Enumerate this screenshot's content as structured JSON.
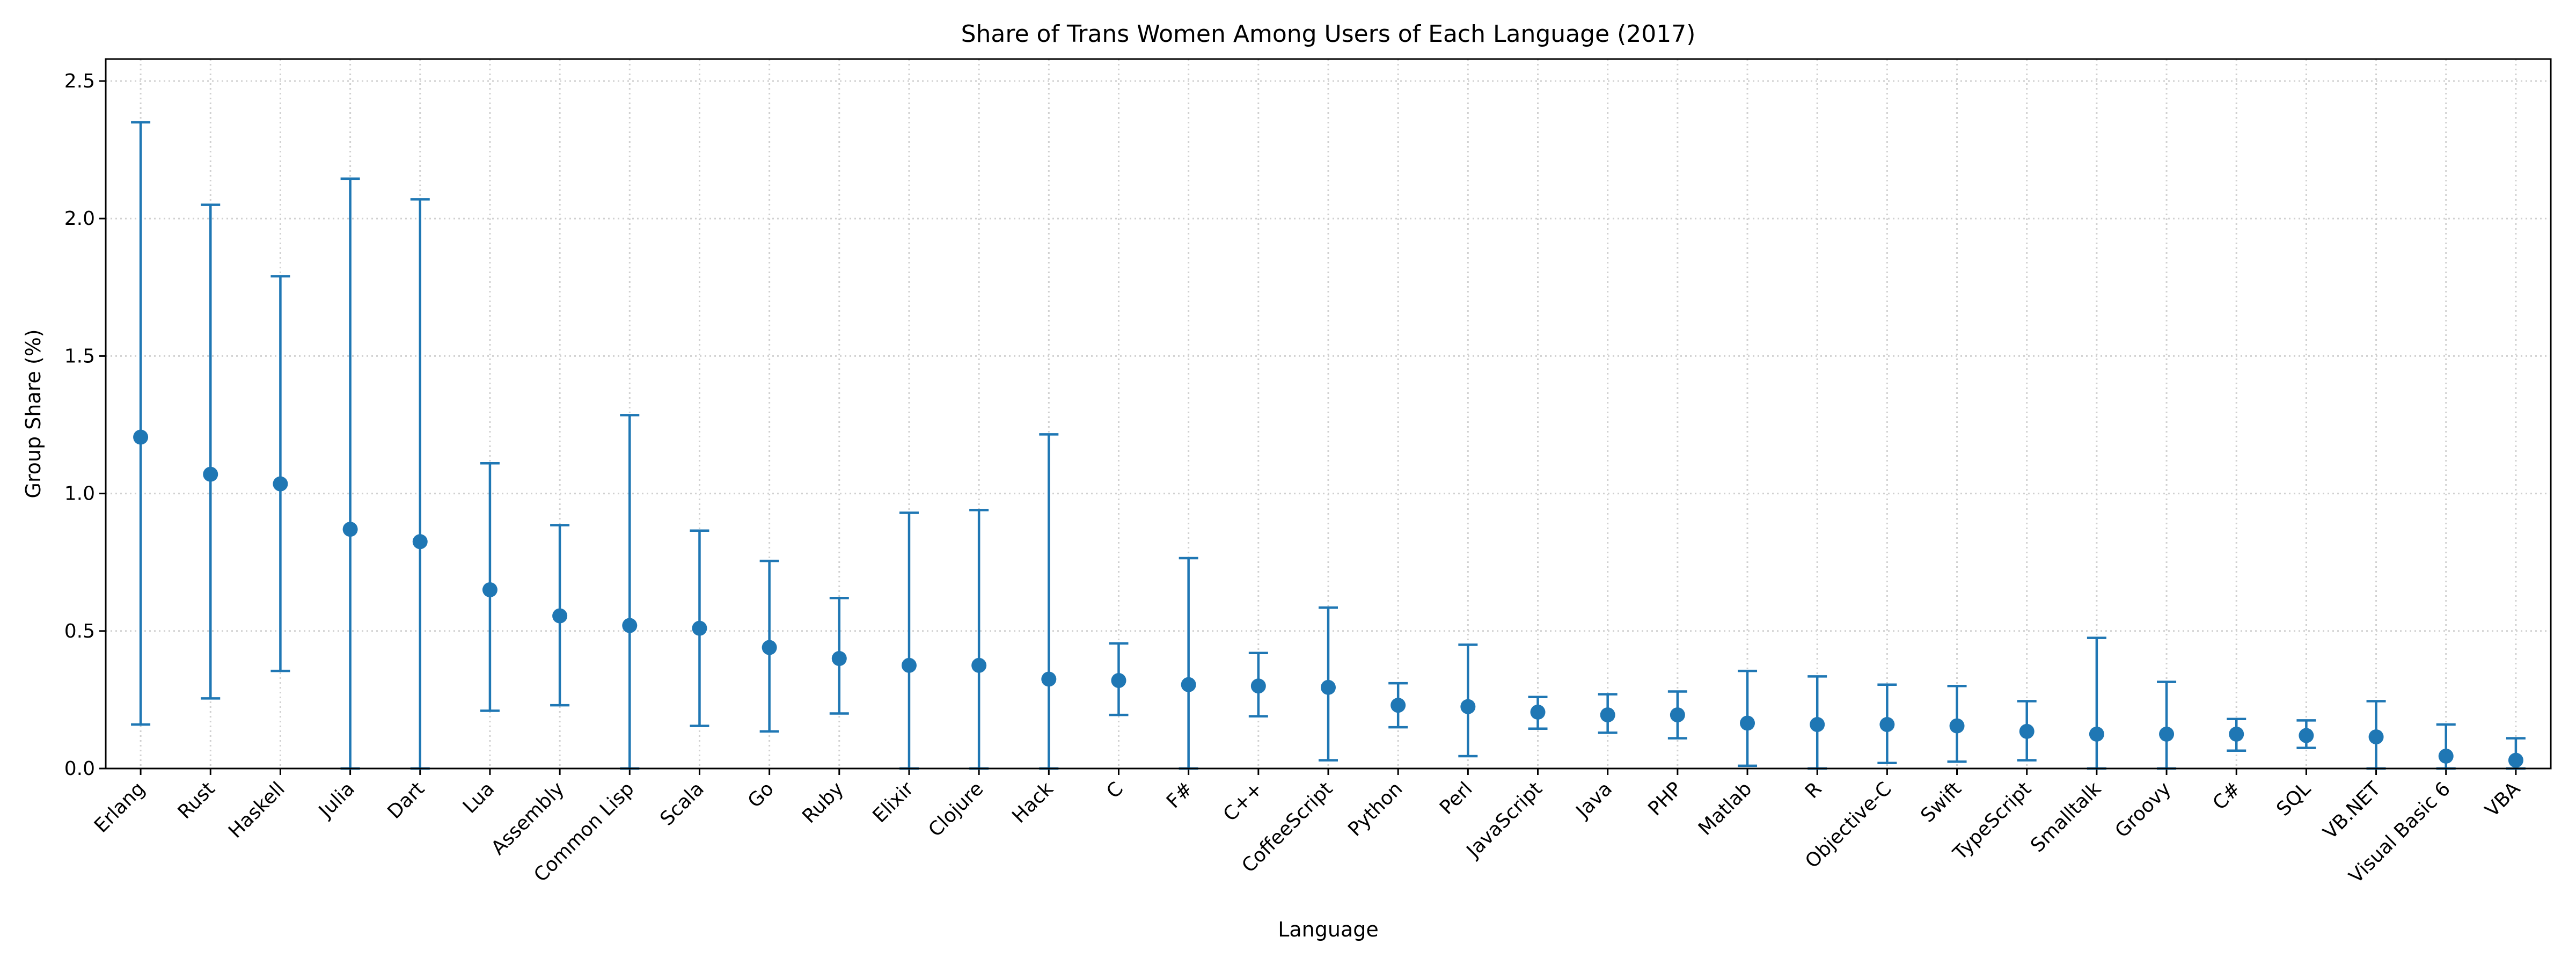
{
  "chart_data": {
    "type": "errorbar",
    "title": "Share of Trans Women Among Users of Each Language (2017)",
    "xlabel": "Language",
    "ylabel": "Group Share (%)",
    "ylim": [
      0,
      2.58
    ],
    "yticks": [
      "0.0",
      "0.5",
      "1.0",
      "1.5",
      "2.0",
      "2.5"
    ],
    "grid": true,
    "color": "#1f77b4",
    "categories": [
      "Erlang",
      "Rust",
      "Haskell",
      "Julia",
      "Dart",
      "Lua",
      "Assembly",
      "Common Lisp",
      "Scala",
      "Go",
      "Ruby",
      "Elixir",
      "Clojure",
      "Hack",
      "C",
      "F#",
      "C++",
      "CoffeeScript",
      "Python",
      "Perl",
      "JavaScript",
      "Java",
      "PHP",
      "Matlab",
      "R",
      "Objective-C",
      "Swift",
      "TypeScript",
      "Smalltalk",
      "Groovy",
      "C#",
      "SQL",
      "VB.NET",
      "Visual Basic 6",
      "VBA"
    ],
    "values": [
      1.205,
      1.07,
      1.035,
      0.87,
      0.825,
      0.65,
      0.555,
      0.52,
      0.51,
      0.44,
      0.4,
      0.375,
      0.375,
      0.325,
      0.32,
      0.305,
      0.3,
      0.295,
      0.23,
      0.225,
      0.205,
      0.195,
      0.195,
      0.165,
      0.16,
      0.16,
      0.155,
      0.135,
      0.125,
      0.125,
      0.125,
      0.12,
      0.115,
      0.045,
      0.03
    ],
    "lower": [
      0.16,
      0.255,
      0.355,
      0.0,
      0.0,
      0.21,
      0.23,
      0.0,
      0.155,
      0.135,
      0.2,
      0.0,
      0.0,
      0.0,
      0.195,
      0.0,
      0.19,
      0.03,
      0.15,
      0.045,
      0.145,
      0.13,
      0.11,
      0.01,
      0.0,
      0.02,
      0.025,
      0.03,
      0.0,
      0.0,
      0.065,
      0.075,
      0.0,
      0.0,
      0.0
    ],
    "upper": [
      2.35,
      2.05,
      1.79,
      2.145,
      2.07,
      1.11,
      0.885,
      1.285,
      0.865,
      0.755,
      0.62,
      0.93,
      0.94,
      1.215,
      0.455,
      0.765,
      0.42,
      0.585,
      0.31,
      0.45,
      0.26,
      0.27,
      0.28,
      0.355,
      0.335,
      0.305,
      0.3,
      0.245,
      0.475,
      0.315,
      0.18,
      0.175,
      0.245,
      0.16,
      0.11
    ]
  }
}
